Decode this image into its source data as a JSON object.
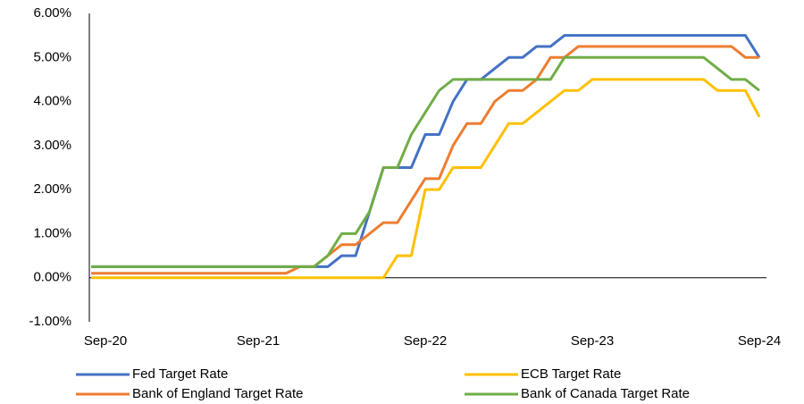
{
  "chart_data": {
    "type": "line",
    "categories": [
      "Sep-20",
      null,
      null,
      null,
      null,
      null,
      null,
      null,
      null,
      null,
      null,
      null,
      "Sep-21",
      null,
      null,
      null,
      null,
      null,
      null,
      null,
      null,
      null,
      null,
      null,
      "Sep-22",
      null,
      null,
      null,
      null,
      null,
      null,
      null,
      null,
      null,
      null,
      null,
      "Sep-23",
      null,
      null,
      null,
      null,
      null,
      null,
      null,
      null,
      null,
      null,
      null,
      "Sep-24"
    ],
    "series": [
      {
        "name": "Fed Target Rate",
        "color": "#4472c4",
        "values": [
          0.25,
          0.25,
          0.25,
          0.25,
          0.25,
          0.25,
          0.25,
          0.25,
          0.25,
          0.25,
          0.25,
          0.25,
          0.25,
          0.25,
          0.25,
          0.25,
          0.25,
          0.25,
          0.5,
          0.5,
          1.5,
          2.5,
          2.5,
          2.5,
          3.25,
          3.25,
          4.0,
          4.5,
          4.5,
          4.75,
          5.0,
          5.0,
          5.25,
          5.25,
          5.5,
          5.5,
          5.5,
          5.5,
          5.5,
          5.5,
          5.5,
          5.5,
          5.5,
          5.5,
          5.5,
          5.5,
          5.5,
          5.5,
          5.0
        ]
      },
      {
        "name": "ECB Target Rate",
        "color": "#ffc000",
        "values": [
          0,
          0,
          0,
          0,
          0,
          0,
          0,
          0,
          0,
          0,
          0,
          0,
          0,
          0,
          0,
          0,
          0,
          0,
          0,
          0,
          0,
          0,
          0.5,
          0.5,
          2.0,
          2.0,
          2.5,
          2.5,
          2.5,
          3.0,
          3.5,
          3.5,
          3.75,
          4.0,
          4.25,
          4.25,
          4.5,
          4.5,
          4.5,
          4.5,
          4.5,
          4.5,
          4.5,
          4.5,
          4.5,
          4.25,
          4.25,
          4.25,
          3.65
        ]
      },
      {
        "name": "Bank of England Target Rate",
        "color": "#ed7d31",
        "values": [
          0.1,
          0.1,
          0.1,
          0.1,
          0.1,
          0.1,
          0.1,
          0.1,
          0.1,
          0.1,
          0.1,
          0.1,
          0.1,
          0.1,
          0.1,
          0.25,
          0.25,
          0.5,
          0.75,
          0.75,
          1.0,
          1.25,
          1.25,
          1.75,
          2.25,
          2.25,
          3.0,
          3.5,
          3.5,
          4.0,
          4.25,
          4.25,
          4.5,
          5.0,
          5.0,
          5.25,
          5.25,
          5.25,
          5.25,
          5.25,
          5.25,
          5.25,
          5.25,
          5.25,
          5.25,
          5.25,
          5.25,
          5.0,
          5.0
        ]
      },
      {
        "name": "Bank of Canada Target Rate",
        "color": "#70ad47",
        "values": [
          0.25,
          0.25,
          0.25,
          0.25,
          0.25,
          0.25,
          0.25,
          0.25,
          0.25,
          0.25,
          0.25,
          0.25,
          0.25,
          0.25,
          0.25,
          0.25,
          0.25,
          0.5,
          1.0,
          1.0,
          1.5,
          2.5,
          2.5,
          3.25,
          3.75,
          4.25,
          4.5,
          4.5,
          4.5,
          4.5,
          4.5,
          4.5,
          4.5,
          4.5,
          5.0,
          5.0,
          5.0,
          5.0,
          5.0,
          5.0,
          5.0,
          5.0,
          5.0,
          5.0,
          5.0,
          4.75,
          4.5,
          4.5,
          4.25
        ]
      }
    ],
    "ylim": [
      -1,
      6
    ],
    "yticks": [
      {
        "value": -1,
        "label": "-1.00%"
      },
      {
        "value": 0,
        "label": "0.00%"
      },
      {
        "value": 1,
        "label": "1.00%"
      },
      {
        "value": 2,
        "label": "2.00%"
      },
      {
        "value": 3,
        "label": "3.00%"
      },
      {
        "value": 4,
        "label": "4.00%"
      },
      {
        "value": 5,
        "label": "5.00%"
      },
      {
        "value": 6,
        "label": "6.00%"
      }
    ],
    "grid": false,
    "legend": "bottom"
  }
}
